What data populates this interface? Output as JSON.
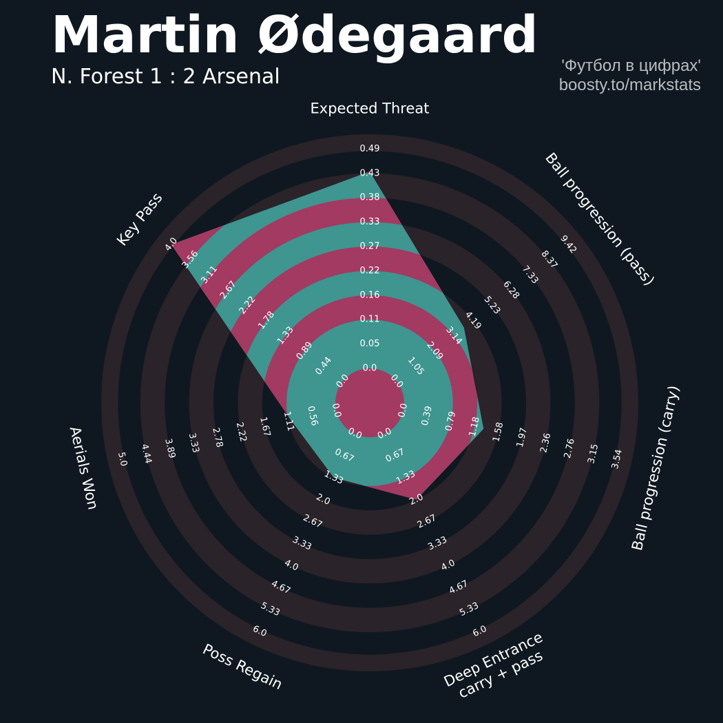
{
  "header": {
    "title": "Martin Ødegaard",
    "subtitle": "N. Forest 1 : 2 Arsenal",
    "credit_line1": "'Футбол в цифрах'",
    "credit_line2": "boosty.to/markstats"
  },
  "colors": {
    "background": "#0f1820",
    "ring_band": "#2a2329",
    "fill_teal": "#3f9590",
    "fill_magenta": "#a23a62",
    "text": "#ffffff"
  },
  "chart_data": {
    "type": "radar",
    "axes": [
      {
        "name": "Expected Threat",
        "value": 0.44,
        "ticks": [
          "0.0",
          "0.05",
          "0.11",
          "0.16",
          "0.22",
          "0.27",
          "0.33",
          "0.38",
          "0.43",
          "0.49"
        ]
      },
      {
        "name": "Ball progression (pass)",
        "value": 3.7,
        "ticks": [
          "0.0",
          "1.05",
          "2.09",
          "3.14",
          "4.19",
          "5.23",
          "6.28",
          "7.33",
          "8.37",
          "9.42"
        ]
      },
      {
        "name": "Ball progression (carry)",
        "value": 1.33,
        "ticks": [
          "0.0",
          "0.39",
          "0.79",
          "1.18",
          "1.58",
          "1.97",
          "2.36",
          "2.76",
          "3.15",
          "3.54"
        ]
      },
      {
        "name": "Deep Entrance\ncarry + pass",
        "value": 2.0,
        "ticks": [
          "0.0",
          "0.67",
          "1.33",
          "2.0",
          "2.67",
          "3.33",
          "4.0",
          "4.67",
          "5.33",
          "6.0"
        ]
      },
      {
        "name": "Poss Regain",
        "value": 1.33,
        "ticks": [
          "0.0",
          "0.67",
          "1.33",
          "2.0",
          "2.67",
          "3.33",
          "4.0",
          "4.67",
          "5.33",
          "6.0"
        ]
      },
      {
        "name": "Aerials Won",
        "value": 1.05,
        "ticks": [
          "0.0",
          "0.56",
          "1.11",
          "1.67",
          "2.22",
          "2.78",
          "3.33",
          "3.89",
          "4.44",
          "5.0"
        ]
      },
      {
        "name": "Key Pass",
        "value": 4.0,
        "ticks": [
          "0.0",
          "0.44",
          "0.89",
          "1.33",
          "1.78",
          "2.22",
          "2.67",
          "3.11",
          "3.56",
          "4.0"
        ]
      }
    ]
  }
}
